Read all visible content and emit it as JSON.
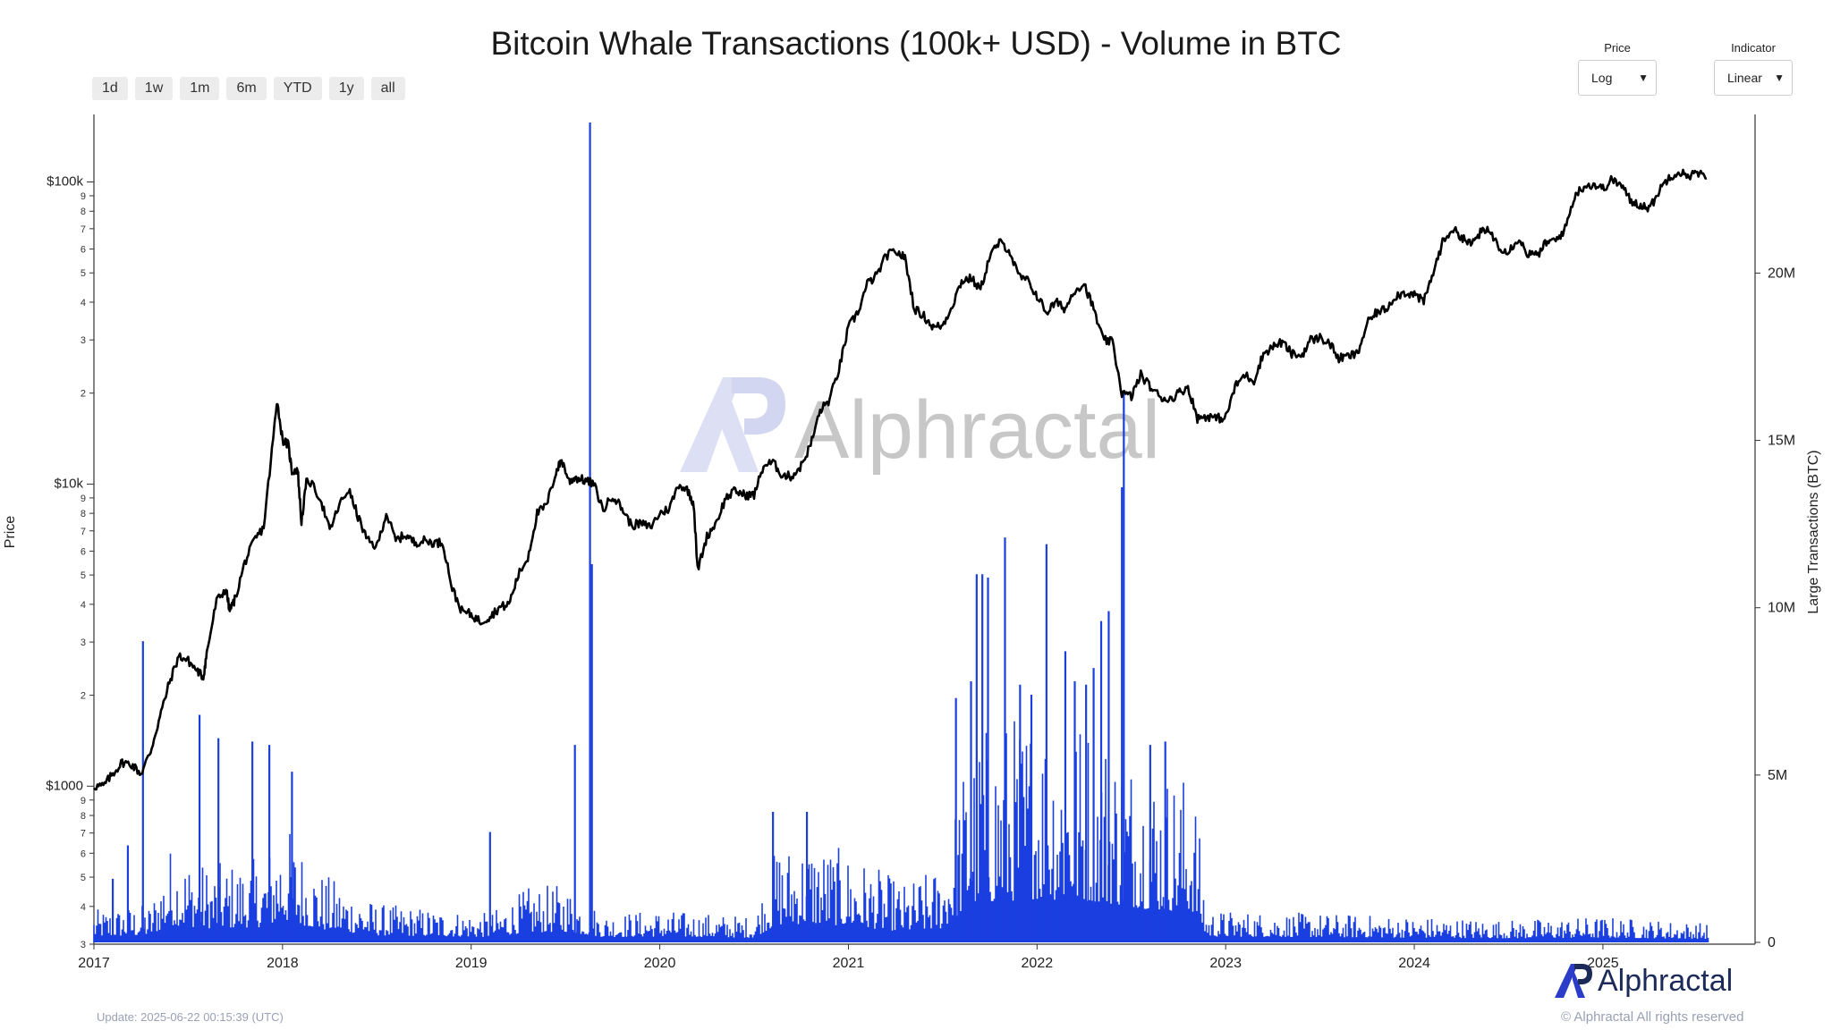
{
  "title": "Bitcoin Whale Transactions (100k+ USD) - Volume in BTC",
  "range_buttons": [
    "1d",
    "1w",
    "1m",
    "6m",
    "YTD",
    "1y",
    "all"
  ],
  "price_select": {
    "caption": "Price",
    "value": "Log"
  },
  "indicator_select": {
    "caption": "Indicator",
    "value": "Linear"
  },
  "watermark": "Alphractal",
  "brand": "Alphractal",
  "update_note": "Update: 2025-06-22 00:15:39 (UTC)",
  "copyright": "© Alphractal All rights reserved",
  "colors": {
    "price_line": "#000000",
    "volume": "#1a3fe0",
    "brand": "#1c2a5a",
    "watermark": "#b9bde0"
  },
  "chart_data": {
    "type": "line",
    "title": "Bitcoin Whale Transactions (100k+ USD) - Volume in BTC",
    "x_ticks": [
      "2017",
      "2018",
      "2019",
      "2020",
      "2021",
      "2022",
      "2023",
      "2024",
      "2025"
    ],
    "y_left": {
      "label": "Price",
      "scale": "log",
      "range": [
        300,
        150000
      ],
      "major_ticks": [
        {
          "value": 1000,
          "label": "$1000"
        },
        {
          "value": 10000,
          "label": "$10k"
        },
        {
          "value": 100000,
          "label": "$100k"
        }
      ],
      "minor_ticks": [
        {
          "value": 300,
          "label": "3"
        },
        {
          "value": 400,
          "label": "4"
        },
        {
          "value": 500,
          "label": "5"
        },
        {
          "value": 600,
          "label": "6"
        },
        {
          "value": 700,
          "label": "7"
        },
        {
          "value": 800,
          "label": "8"
        },
        {
          "value": 900,
          "label": "9"
        },
        {
          "value": 2000,
          "label": "2"
        },
        {
          "value": 3000,
          "label": "3"
        },
        {
          "value": 4000,
          "label": "4"
        },
        {
          "value": 5000,
          "label": "5"
        },
        {
          "value": 6000,
          "label": "6"
        },
        {
          "value": 7000,
          "label": "7"
        },
        {
          "value": 8000,
          "label": "8"
        },
        {
          "value": 9000,
          "label": "9"
        },
        {
          "value": 20000,
          "label": "2"
        },
        {
          "value": 30000,
          "label": "3"
        },
        {
          "value": 40000,
          "label": "4"
        },
        {
          "value": 50000,
          "label": "5"
        },
        {
          "value": 60000,
          "label": "6"
        },
        {
          "value": 70000,
          "label": "7"
        },
        {
          "value": 80000,
          "label": "8"
        },
        {
          "value": 90000,
          "label": "9"
        }
      ]
    },
    "y_right": {
      "label": "Large Transactions (BTC)",
      "scale": "linear",
      "range": [
        0,
        24500000
      ],
      "ticks": [
        {
          "value": 0,
          "label": "0"
        },
        {
          "value": 5000000,
          "label": "5M"
        },
        {
          "value": 10000000,
          "label": "10M"
        },
        {
          "value": 15000000,
          "label": "15M"
        },
        {
          "value": 20000000,
          "label": "20M"
        }
      ]
    },
    "x_range": [
      2017.0,
      2025.56
    ],
    "series": [
      {
        "name": "Price",
        "axis": "left",
        "type": "line",
        "points": [
          [
            2017.0,
            1000
          ],
          [
            2017.05,
            1000
          ],
          [
            2017.1,
            1100
          ],
          [
            2017.15,
            1200
          ],
          [
            2017.2,
            1180
          ],
          [
            2017.25,
            1100
          ],
          [
            2017.3,
            1300
          ],
          [
            2017.35,
            1700
          ],
          [
            2017.4,
            2200
          ],
          [
            2017.45,
            2700
          ],
          [
            2017.5,
            2600
          ],
          [
            2017.55,
            2400
          ],
          [
            2017.58,
            2300
          ],
          [
            2017.6,
            2800
          ],
          [
            2017.65,
            4100
          ],
          [
            2017.7,
            4500
          ],
          [
            2017.72,
            3800
          ],
          [
            2017.75,
            4200
          ],
          [
            2017.8,
            5500
          ],
          [
            2017.85,
            6500
          ],
          [
            2017.9,
            7200
          ],
          [
            2017.95,
            14000
          ],
          [
            2017.97,
            19000
          ],
          [
            2018.0,
            14000
          ],
          [
            2018.03,
            13500
          ],
          [
            2018.05,
            11000
          ],
          [
            2018.08,
            11200
          ],
          [
            2018.1,
            7500
          ],
          [
            2018.13,
            10500
          ],
          [
            2018.2,
            9000
          ],
          [
            2018.25,
            7000
          ],
          [
            2018.3,
            8500
          ],
          [
            2018.35,
            9600
          ],
          [
            2018.4,
            7800
          ],
          [
            2018.45,
            6500
          ],
          [
            2018.5,
            6200
          ],
          [
            2018.55,
            8000
          ],
          [
            2018.6,
            6500
          ],
          [
            2018.65,
            6800
          ],
          [
            2018.7,
            6400
          ],
          [
            2018.75,
            6500
          ],
          [
            2018.8,
            6400
          ],
          [
            2018.85,
            6400
          ],
          [
            2018.9,
            4500
          ],
          [
            2018.95,
            3800
          ],
          [
            2019.0,
            3700
          ],
          [
            2019.05,
            3500
          ],
          [
            2019.1,
            3650
          ],
          [
            2019.15,
            3900
          ],
          [
            2019.2,
            4000
          ],
          [
            2019.25,
            5000
          ],
          [
            2019.3,
            5700
          ],
          [
            2019.35,
            8000
          ],
          [
            2019.4,
            8500
          ],
          [
            2019.45,
            11000
          ],
          [
            2019.48,
            12000
          ],
          [
            2019.52,
            10200
          ],
          [
            2019.55,
            10500
          ],
          [
            2019.6,
            10300
          ],
          [
            2019.65,
            10000
          ],
          [
            2019.7,
            8200
          ],
          [
            2019.75,
            9200
          ],
          [
            2019.8,
            8300
          ],
          [
            2019.85,
            7300
          ],
          [
            2019.9,
            7400
          ],
          [
            2019.95,
            7200
          ],
          [
            2020.0,
            8000
          ],
          [
            2020.05,
            8300
          ],
          [
            2020.1,
            10000
          ],
          [
            2020.15,
            9500
          ],
          [
            2020.18,
            8600
          ],
          [
            2020.2,
            5200
          ],
          [
            2020.25,
            6700
          ],
          [
            2020.3,
            7500
          ],
          [
            2020.35,
            9000
          ],
          [
            2020.4,
            9500
          ],
          [
            2020.45,
            9200
          ],
          [
            2020.5,
            9200
          ],
          [
            2020.55,
            11500
          ],
          [
            2020.6,
            11800
          ],
          [
            2020.65,
            10700
          ],
          [
            2020.7,
            10600
          ],
          [
            2020.75,
            11500
          ],
          [
            2020.8,
            13500
          ],
          [
            2020.85,
            17500
          ],
          [
            2020.9,
            19000
          ],
          [
            2020.95,
            24000
          ],
          [
            2021.0,
            33000
          ],
          [
            2021.05,
            37000
          ],
          [
            2021.1,
            46000
          ],
          [
            2021.15,
            49000
          ],
          [
            2021.2,
            57000
          ],
          [
            2021.25,
            59000
          ],
          [
            2021.3,
            56000
          ],
          [
            2021.35,
            38000
          ],
          [
            2021.4,
            36000
          ],
          [
            2021.45,
            33000
          ],
          [
            2021.5,
            33500
          ],
          [
            2021.55,
            39000
          ],
          [
            2021.6,
            47000
          ],
          [
            2021.65,
            48000
          ],
          [
            2021.7,
            44000
          ],
          [
            2021.75,
            57000
          ],
          [
            2021.8,
            63000
          ],
          [
            2021.85,
            60000
          ],
          [
            2021.9,
            49000
          ],
          [
            2021.95,
            47000
          ],
          [
            2022.0,
            42000
          ],
          [
            2022.05,
            37000
          ],
          [
            2022.1,
            40000
          ],
          [
            2022.15,
            38000
          ],
          [
            2022.2,
            44000
          ],
          [
            2022.25,
            46000
          ],
          [
            2022.3,
            38000
          ],
          [
            2022.35,
            30000
          ],
          [
            2022.4,
            29500
          ],
          [
            2022.45,
            20000
          ],
          [
            2022.5,
            19500
          ],
          [
            2022.55,
            23000
          ],
          [
            2022.6,
            21000
          ],
          [
            2022.65,
            19500
          ],
          [
            2022.7,
            19000
          ],
          [
            2022.75,
            20000
          ],
          [
            2022.8,
            21000
          ],
          [
            2022.85,
            16500
          ],
          [
            2022.9,
            16800
          ],
          [
            2022.95,
            16500
          ],
          [
            2023.0,
            16600
          ],
          [
            2023.05,
            21000
          ],
          [
            2023.1,
            23000
          ],
          [
            2023.15,
            22000
          ],
          [
            2023.2,
            27000
          ],
          [
            2023.25,
            28500
          ],
          [
            2023.3,
            29500
          ],
          [
            2023.35,
            27000
          ],
          [
            2023.4,
            26500
          ],
          [
            2023.45,
            30000
          ],
          [
            2023.5,
            30500
          ],
          [
            2023.55,
            29300
          ],
          [
            2023.6,
            26000
          ],
          [
            2023.65,
            26500
          ],
          [
            2023.7,
            27000
          ],
          [
            2023.75,
            34000
          ],
          [
            2023.8,
            37000
          ],
          [
            2023.85,
            38000
          ],
          [
            2023.9,
            42000
          ],
          [
            2023.95,
            43000
          ],
          [
            2024.0,
            42500
          ],
          [
            2024.05,
            40000
          ],
          [
            2024.1,
            50000
          ],
          [
            2024.15,
            63000
          ],
          [
            2024.2,
            70000
          ],
          [
            2024.25,
            66000
          ],
          [
            2024.3,
            62000
          ],
          [
            2024.35,
            68000
          ],
          [
            2024.4,
            69000
          ],
          [
            2024.45,
            61000
          ],
          [
            2024.5,
            59000
          ],
          [
            2024.55,
            65000
          ],
          [
            2024.6,
            58000
          ],
          [
            2024.65,
            57000
          ],
          [
            2024.7,
            63000
          ],
          [
            2024.75,
            64000
          ],
          [
            2024.8,
            70000
          ],
          [
            2024.85,
            90000
          ],
          [
            2024.9,
            97000
          ],
          [
            2024.95,
            98000
          ],
          [
            2025.0,
            95000
          ],
          [
            2025.05,
            102000
          ],
          [
            2025.1,
            97000
          ],
          [
            2025.15,
            86000
          ],
          [
            2025.2,
            84000
          ],
          [
            2025.25,
            82000
          ],
          [
            2025.3,
            94000
          ],
          [
            2025.35,
            104000
          ],
          [
            2025.4,
            108000
          ],
          [
            2025.45,
            105000
          ],
          [
            2025.5,
            107000
          ],
          [
            2025.55,
            103000
          ]
        ]
      },
      {
        "name": "Large Transactions (BTC)",
        "axis": "right",
        "type": "area",
        "baseline": [
          [
            2017.0,
            500000
          ],
          [
            2017.3,
            600000
          ],
          [
            2017.4,
            1500000
          ],
          [
            2017.6,
            1200000
          ],
          [
            2017.9,
            1300000
          ],
          [
            2018.0,
            1900000
          ],
          [
            2018.2,
            1100000
          ],
          [
            2018.5,
            600000
          ],
          [
            2018.9,
            500000
          ],
          [
            2019.1,
            450000
          ],
          [
            2019.3,
            850000
          ],
          [
            2019.5,
            900000
          ],
          [
            2019.7,
            450000
          ],
          [
            2020.0,
            500000
          ],
          [
            2020.5,
            400000
          ],
          [
            2020.62,
            1500000
          ],
          [
            2020.8,
            1600000
          ],
          [
            2021.0,
            1400000
          ],
          [
            2021.3,
            900000
          ],
          [
            2021.5,
            1200000
          ],
          [
            2021.65,
            3300000
          ],
          [
            2022.0,
            3700000
          ],
          [
            2022.3,
            3500000
          ],
          [
            2022.6,
            2800000
          ],
          [
            2022.83,
            2600000
          ],
          [
            2022.9,
            500000
          ],
          [
            2023.5,
            450000
          ],
          [
            2024.0,
            400000
          ],
          [
            2024.5,
            350000
          ],
          [
            2025.0,
            400000
          ],
          [
            2025.56,
            300000
          ]
        ],
        "spikes": [
          [
            2017.1,
            1900000
          ],
          [
            2017.18,
            2900000
          ],
          [
            2017.26,
            9000000
          ],
          [
            2017.56,
            6800000
          ],
          [
            2017.66,
            6100000
          ],
          [
            2017.84,
            6000000
          ],
          [
            2017.93,
            5900000
          ],
          [
            2018.05,
            5100000
          ],
          [
            2019.1,
            3300000
          ],
          [
            2019.55,
            5900000
          ],
          [
            2019.63,
            24500000
          ],
          [
            2019.64,
            11300000
          ],
          [
            2020.6,
            3900000
          ],
          [
            2020.78,
            3900000
          ],
          [
            2021.57,
            7300000
          ],
          [
            2021.65,
            7800000
          ],
          [
            2021.68,
            11000000
          ],
          [
            2021.71,
            11000000
          ],
          [
            2021.74,
            10900000
          ],
          [
            2021.83,
            12100000
          ],
          [
            2021.91,
            7700000
          ],
          [
            2021.97,
            7400000
          ],
          [
            2022.05,
            11900000
          ],
          [
            2022.15,
            8700000
          ],
          [
            2022.2,
            7800000
          ],
          [
            2022.26,
            7700000
          ],
          [
            2022.3,
            8200000
          ],
          [
            2022.34,
            9600000
          ],
          [
            2022.38,
            9900000
          ],
          [
            2022.45,
            13600000
          ],
          [
            2022.46,
            16500000
          ],
          [
            2022.6,
            5900000
          ],
          [
            2022.68,
            6000000
          ]
        ]
      }
    ],
    "grid": false,
    "legend": "none"
  }
}
